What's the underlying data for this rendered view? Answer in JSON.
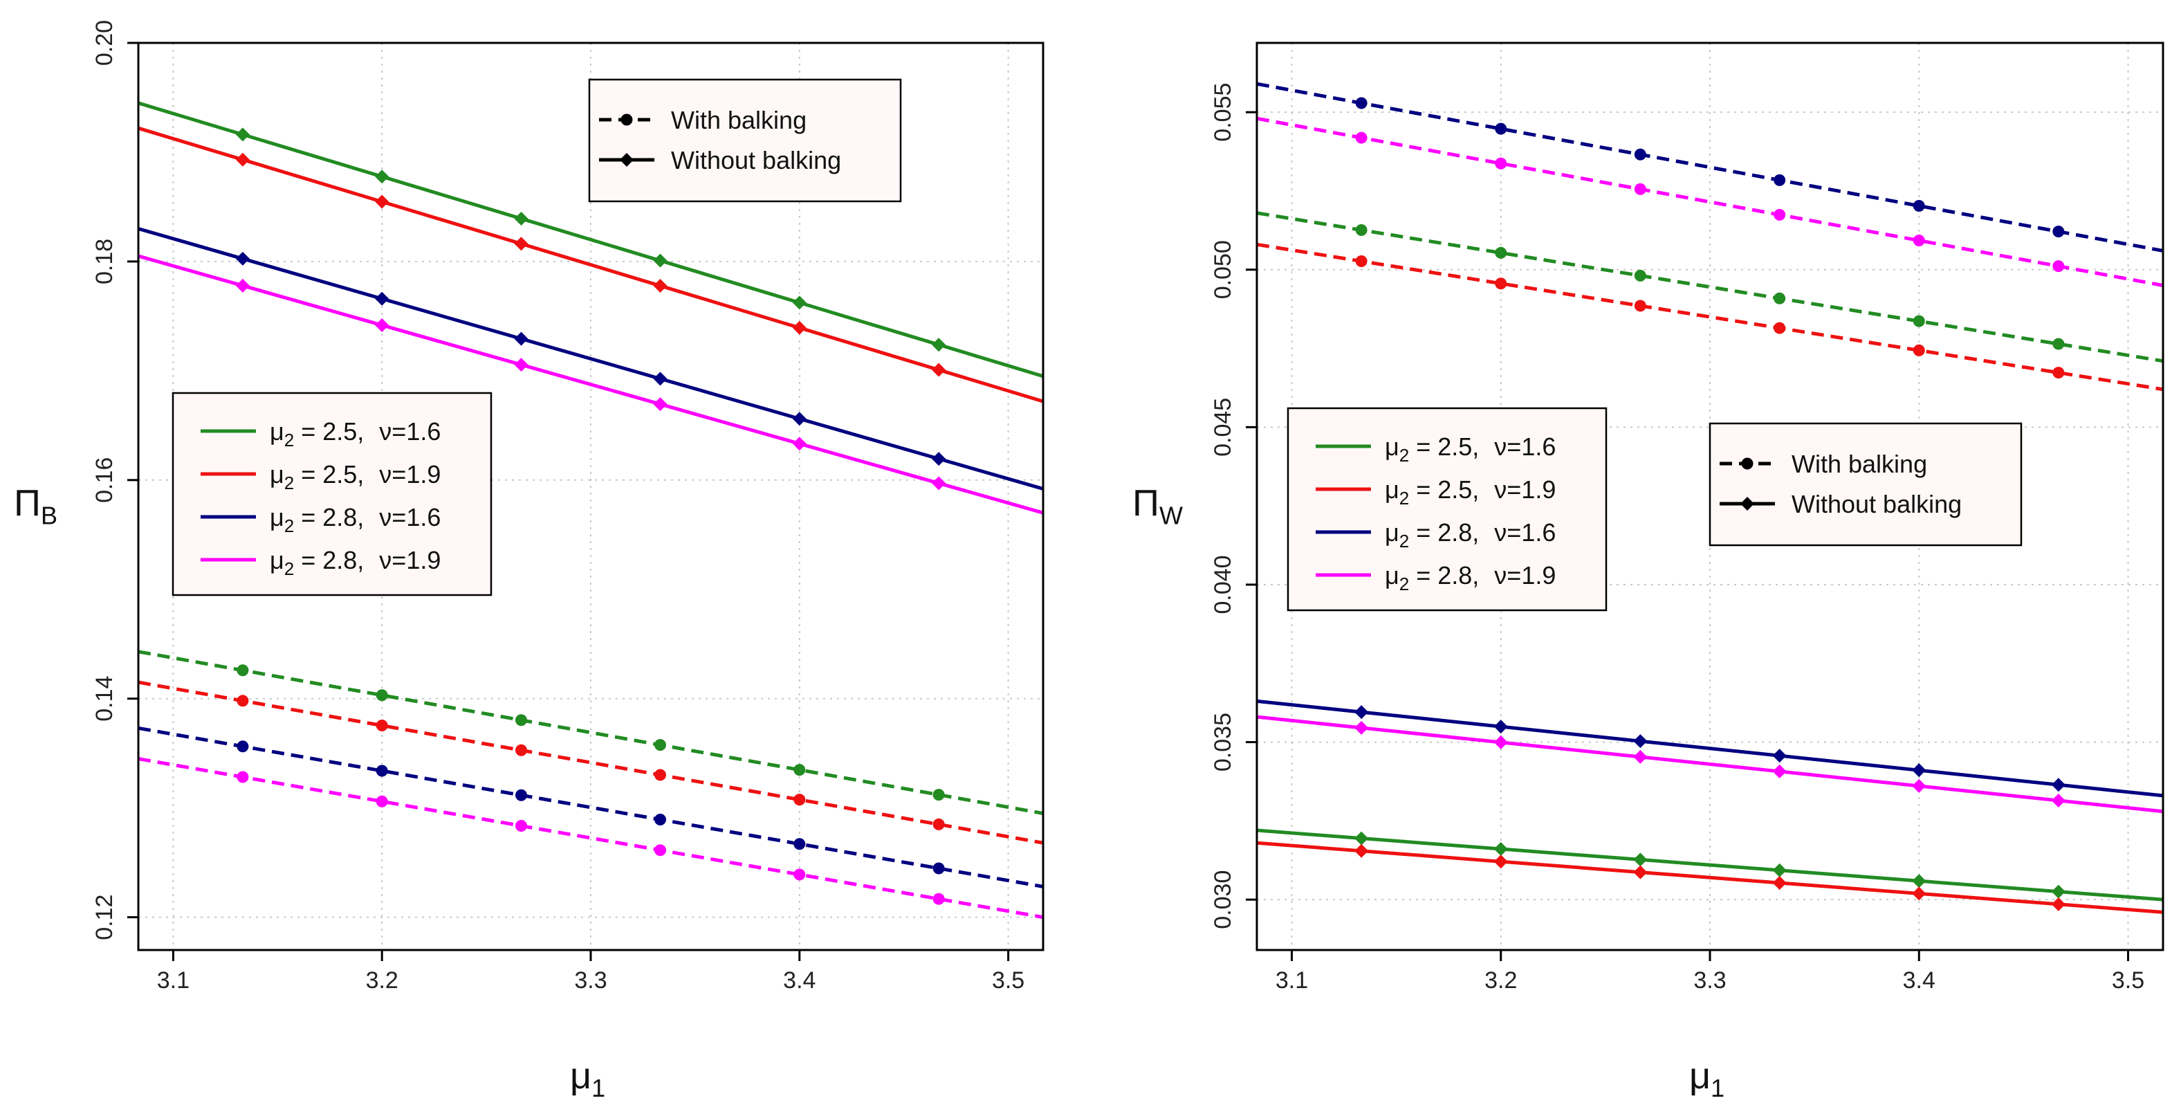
{
  "chart_data": [
    {
      "type": "line",
      "panel": "left",
      "ylabel_main": "Π",
      "ylabel_sub": "B",
      "xlabel_main": "μ",
      "xlabel_sub": "1",
      "xlim": [
        3.0833,
        3.5167
      ],
      "ylim": [
        0.117,
        0.2
      ],
      "x_ticks": [
        3.1,
        3.2,
        3.3,
        3.4,
        3.5
      ],
      "x_tick_labels": [
        "3.1",
        "3.2",
        "3.3",
        "3.4",
        "3.5"
      ],
      "y_ticks": [
        0.12,
        0.14,
        0.16,
        0.18,
        0.2
      ],
      "y_tick_labels": [
        "0.12",
        "0.14",
        "0.16",
        "0.18",
        "0.20"
      ],
      "grid": true,
      "marker_x": [
        3.1333,
        3.2,
        3.2667,
        3.3333,
        3.4,
        3.4667
      ],
      "series": [
        {
          "name": "μ2=2.5, ν=1.6, without balking",
          "color": "#228B22",
          "style": "solid",
          "marker": "diamond",
          "x_range": [
            3.0833,
            3.5167
          ],
          "y_range": [
            0.1945,
            0.1695
          ]
        },
        {
          "name": "μ2=2.5, ν=1.9, without balking",
          "color": "#EE1111",
          "style": "solid",
          "marker": "diamond",
          "x_range": [
            3.0833,
            3.5167
          ],
          "y_range": [
            0.1922,
            0.1672
          ]
        },
        {
          "name": "μ2=2.8, ν=1.6, without balking",
          "color": "#000080",
          "style": "solid",
          "marker": "diamond",
          "x_range": [
            3.0833,
            3.5167
          ],
          "y_range": [
            0.183,
            0.1592
          ]
        },
        {
          "name": "μ2=2.8, ν=1.9, without balking",
          "color": "#FF00FF",
          "style": "solid",
          "marker": "diamond",
          "x_range": [
            3.0833,
            3.5167
          ],
          "y_range": [
            0.1805,
            0.157
          ]
        },
        {
          "name": "μ2=2.5, ν=1.6, with balking",
          "color": "#228B22",
          "style": "dashed",
          "marker": "circle",
          "x_range": [
            3.0833,
            3.5167
          ],
          "y_range": [
            0.1443,
            0.1295
          ]
        },
        {
          "name": "μ2=2.5, ν=1.9, with balking",
          "color": "#EE1111",
          "style": "dashed",
          "marker": "circle",
          "x_range": [
            3.0833,
            3.5167
          ],
          "y_range": [
            0.1415,
            0.1268
          ]
        },
        {
          "name": "μ2=2.8, ν=1.6, with balking",
          "color": "#000080",
          "style": "dashed",
          "marker": "circle",
          "x_range": [
            3.0833,
            3.5167
          ],
          "y_range": [
            0.1373,
            0.1228
          ]
        },
        {
          "name": "μ2=2.8, ν=1.9, with balking",
          "color": "#FF00FF",
          "style": "dashed",
          "marker": "circle",
          "x_range": [
            3.0833,
            3.5167
          ],
          "y_range": [
            0.1345,
            0.12
          ]
        }
      ],
      "legend_params": {
        "placement": "middle-left",
        "entries": [
          {
            "mu_sym": "μ",
            "mu_sub": "2",
            "mu_val": " = 2.5,",
            "nu_text": "ν=1.6",
            "color": "#228B22"
          },
          {
            "mu_sym": "μ",
            "mu_sub": "2",
            "mu_val": " = 2.5,",
            "nu_text": "ν=1.9",
            "color": "#EE1111"
          },
          {
            "mu_sym": "μ",
            "mu_sub": "2",
            "mu_val": " = 2.8,",
            "nu_text": "ν=1.6",
            "color": "#000080"
          },
          {
            "mu_sym": "μ",
            "mu_sub": "2",
            "mu_val": " = 2.8,",
            "nu_text": "ν=1.9",
            "color": "#FF00FF"
          }
        ]
      },
      "legend_style": {
        "placement": "top-right",
        "entries": [
          {
            "label": "With balking",
            "style": "dashed",
            "marker": "circle"
          },
          {
            "label": "Without balking",
            "style": "solid",
            "marker": "diamond"
          }
        ]
      }
    },
    {
      "type": "line",
      "panel": "right",
      "ylabel_main": "Π",
      "ylabel_sub": "W",
      "xlabel_main": "μ",
      "xlabel_sub": "1",
      "xlim": [
        3.0833,
        3.5167
      ],
      "ylim": [
        0.0284,
        0.0572
      ],
      "x_ticks": [
        3.1,
        3.2,
        3.3,
        3.4,
        3.5
      ],
      "x_tick_labels": [
        "3.1",
        "3.2",
        "3.3",
        "3.4",
        "3.5"
      ],
      "y_ticks": [
        0.03,
        0.035,
        0.04,
        0.045,
        0.05,
        0.055
      ],
      "y_tick_labels": [
        "0.030",
        "0.035",
        "0.040",
        "0.045",
        "0.050",
        "0.055"
      ],
      "grid": true,
      "marker_x": [
        3.1333,
        3.2,
        3.2667,
        3.3333,
        3.4,
        3.4667
      ],
      "series": [
        {
          "name": "μ2=2.8, ν=1.6, with balking",
          "color": "#000080",
          "style": "dashed",
          "marker": "circle",
          "x_range": [
            3.0833,
            3.5167
          ],
          "y_range": [
            0.0559,
            0.0506
          ]
        },
        {
          "name": "μ2=2.8, ν=1.9, with balking",
          "color": "#FF00FF",
          "style": "dashed",
          "marker": "circle",
          "x_range": [
            3.0833,
            3.5167
          ],
          "y_range": [
            0.0548,
            0.0495
          ]
        },
        {
          "name": "μ2=2.5, ν=1.6, with balking",
          "color": "#228B22",
          "style": "dashed",
          "marker": "circle",
          "x_range": [
            3.0833,
            3.5167
          ],
          "y_range": [
            0.0518,
            0.0471
          ]
        },
        {
          "name": "μ2=2.5, ν=1.9, with balking",
          "color": "#EE1111",
          "style": "dashed",
          "marker": "circle",
          "x_range": [
            3.0833,
            3.5167
          ],
          "y_range": [
            0.0508,
            0.0462
          ]
        },
        {
          "name": "μ2=2.8, ν=1.6, without balking",
          "color": "#000080",
          "style": "solid",
          "marker": "diamond",
          "x_range": [
            3.0833,
            3.5167
          ],
          "y_range": [
            0.0363,
            0.0333
          ]
        },
        {
          "name": "μ2=2.8, ν=1.9, without balking",
          "color": "#FF00FF",
          "style": "solid",
          "marker": "diamond",
          "x_range": [
            3.0833,
            3.5167
          ],
          "y_range": [
            0.0358,
            0.0328
          ]
        },
        {
          "name": "μ2=2.5, ν=1.6, without balking",
          "color": "#228B22",
          "style": "solid",
          "marker": "diamond",
          "x_range": [
            3.0833,
            3.5167
          ],
          "y_range": [
            0.0322,
            0.03
          ]
        },
        {
          "name": "μ2=2.5, ν=1.9, without balking",
          "color": "#EE1111",
          "style": "solid",
          "marker": "diamond",
          "x_range": [
            3.0833,
            3.5167
          ],
          "y_range": [
            0.0318,
            0.0296
          ]
        }
      ],
      "legend_params": {
        "placement": "middle-left",
        "entries": [
          {
            "mu_sym": "μ",
            "mu_sub": "2",
            "mu_val": " = 2.5,",
            "nu_text": "ν=1.6",
            "color": "#228B22"
          },
          {
            "mu_sym": "μ",
            "mu_sub": "2",
            "mu_val": " = 2.5,",
            "nu_text": "ν=1.9",
            "color": "#EE1111"
          },
          {
            "mu_sym": "μ",
            "mu_sub": "2",
            "mu_val": " = 2.8,",
            "nu_text": "ν=1.6",
            "color": "#000080"
          },
          {
            "mu_sym": "μ",
            "mu_sub": "2",
            "mu_val": " = 2.8,",
            "nu_text": "ν=1.9",
            "color": "#FF00FF"
          }
        ]
      },
      "legend_style": {
        "placement": "middle-right",
        "entries": [
          {
            "label": "With balking",
            "style": "dashed",
            "marker": "circle"
          },
          {
            "label": "Without balking",
            "style": "solid",
            "marker": "diamond"
          }
        ]
      }
    }
  ]
}
